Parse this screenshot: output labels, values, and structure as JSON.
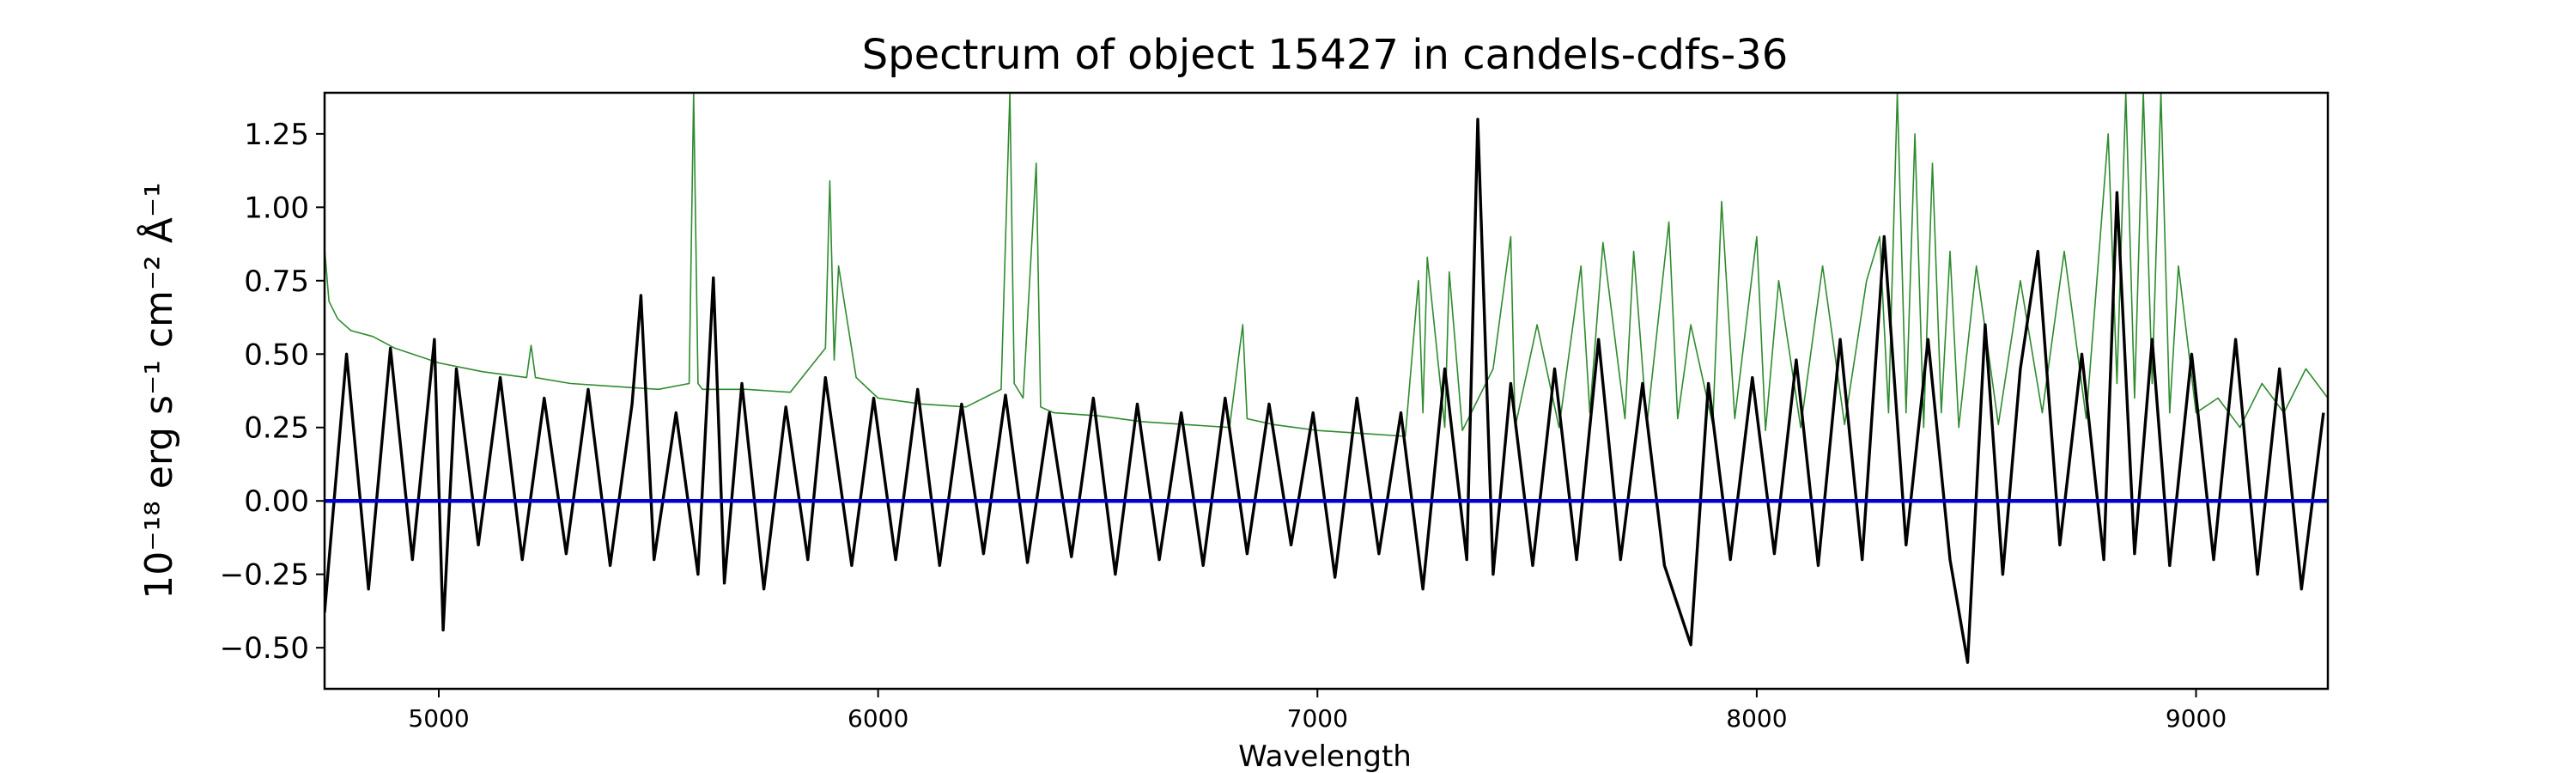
{
  "chart_data": {
    "type": "line",
    "title": "Spectrum of object 15427 in candels-cdfs-36",
    "xlabel": "Wavelength",
    "ylabel": "10⁻¹⁸ erg s⁻¹ cm⁻² Å⁻¹",
    "xlim": [
      4740,
      9300
    ],
    "ylim": [
      -0.64,
      1.39
    ],
    "xticks": [
      5000,
      6000,
      7000,
      8000,
      9000
    ],
    "yticks": [
      -0.5,
      -0.25,
      0.0,
      0.25,
      0.5,
      0.75,
      1.0,
      1.25
    ],
    "ytick_labels": [
      "−0.50",
      "−0.25",
      "0.00",
      "0.25",
      "0.50",
      "0.75",
      "1.00",
      "1.25"
    ],
    "grid": false,
    "colors": {
      "flux": "#000000",
      "error": "#2e8b2e",
      "zero": "#0000cc"
    },
    "series": [
      {
        "key": "flux",
        "x": [
          4740,
          4790,
          4840,
          4890,
          4940,
          4990,
          5010,
          5040,
          5090,
          5140,
          5190,
          5240,
          5290,
          5340,
          5390,
          5440,
          5460,
          5490,
          5540,
          5590,
          5625,
          5650,
          5690,
          5740,
          5790,
          5840,
          5880,
          5940,
          5990,
          6040,
          6090,
          6140,
          6190,
          6240,
          6290,
          6340,
          6390,
          6440,
          6490,
          6540,
          6590,
          6640,
          6690,
          6740,
          6790,
          6840,
          6890,
          6940,
          6990,
          7040,
          7090,
          7140,
          7190,
          7240,
          7290,
          7340,
          7365,
          7400,
          7440,
          7490,
          7540,
          7590,
          7640,
          7690,
          7740,
          7790,
          7850,
          7890,
          7940,
          7990,
          8040,
          8090,
          8140,
          8190,
          8240,
          8290,
          8340,
          8390,
          8440,
          8480,
          8520,
          8560,
          8600,
          8640,
          8690,
          8740,
          8790,
          8820,
          8860,
          8900,
          8940,
          8990,
          9040,
          9090,
          9140,
          9190,
          9240,
          9290
        ],
        "y": [
          -0.38,
          0.5,
          -0.3,
          0.52,
          -0.2,
          0.55,
          -0.44,
          0.45,
          -0.15,
          0.42,
          -0.2,
          0.35,
          -0.18,
          0.38,
          -0.22,
          0.33,
          0.7,
          -0.2,
          0.3,
          -0.25,
          0.76,
          -0.28,
          0.4,
          -0.3,
          0.32,
          -0.2,
          0.42,
          -0.22,
          0.35,
          -0.2,
          0.38,
          -0.22,
          0.33,
          -0.18,
          0.36,
          -0.21,
          0.3,
          -0.19,
          0.35,
          -0.25,
          0.33,
          -0.2,
          0.3,
          -0.22,
          0.35,
          -0.18,
          0.33,
          -0.15,
          0.3,
          -0.26,
          0.35,
          -0.18,
          0.3,
          -0.3,
          0.45,
          -0.2,
          1.3,
          -0.25,
          0.4,
          -0.22,
          0.45,
          -0.2,
          0.55,
          -0.2,
          0.4,
          -0.22,
          -0.49,
          0.4,
          -0.2,
          0.42,
          -0.18,
          0.48,
          -0.22,
          0.55,
          -0.2,
          0.9,
          -0.15,
          0.55,
          -0.2,
          -0.55,
          0.6,
          -0.25,
          0.45,
          0.85,
          -0.15,
          0.5,
          -0.2,
          1.05,
          -0.18,
          0.55,
          -0.22,
          0.5,
          -0.2,
          0.55,
          -0.25,
          0.45,
          -0.3,
          0.3
        ]
      },
      {
        "key": "error",
        "x": [
          4740,
          4750,
          4770,
          4800,
          4850,
          4900,
          5000,
          5100,
          5200,
          5210,
          5220,
          5300,
          5400,
          5500,
          5570,
          5580,
          5590,
          5600,
          5700,
          5800,
          5880,
          5890,
          5900,
          5910,
          5950,
          6000,
          6100,
          6200,
          6280,
          6300,
          6310,
          6330,
          6360,
          6370,
          6400,
          6500,
          6600,
          6700,
          6800,
          6830,
          6840,
          6900,
          7000,
          7100,
          7200,
          7230,
          7240,
          7250,
          7290,
          7300,
          7330,
          7400,
          7440,
          7450,
          7500,
          7550,
          7600,
          7620,
          7650,
          7700,
          7720,
          7750,
          7800,
          7820,
          7850,
          7900,
          7920,
          7950,
          8000,
          8020,
          8050,
          8100,
          8150,
          8200,
          8250,
          8280,
          8300,
          8320,
          8340,
          8360,
          8380,
          8400,
          8420,
          8440,
          8460,
          8500,
          8550,
          8600,
          8650,
          8700,
          8750,
          8800,
          8820,
          8840,
          8860,
          8880,
          8900,
          8920,
          8940,
          8960,
          9000,
          9050,
          9100,
          9150,
          9200,
          9250,
          9300
        ],
        "y": [
          0.86,
          0.68,
          0.62,
          0.58,
          0.56,
          0.52,
          0.47,
          0.44,
          0.42,
          0.53,
          0.42,
          0.4,
          0.39,
          0.38,
          0.4,
          1.39,
          0.4,
          0.38,
          0.38,
          0.37,
          0.52,
          1.09,
          0.48,
          0.8,
          0.42,
          0.35,
          0.33,
          0.32,
          0.38,
          1.39,
          0.4,
          0.35,
          1.15,
          0.32,
          0.3,
          0.29,
          0.27,
          0.26,
          0.25,
          0.6,
          0.28,
          0.26,
          0.24,
          0.23,
          0.22,
          0.75,
          0.3,
          0.83,
          0.25,
          0.78,
          0.24,
          0.45,
          0.9,
          0.25,
          0.6,
          0.25,
          0.8,
          0.3,
          0.88,
          0.28,
          0.85,
          0.26,
          0.95,
          0.28,
          0.6,
          0.26,
          1.02,
          0.28,
          0.9,
          0.24,
          0.75,
          0.25,
          0.8,
          0.26,
          0.75,
          0.9,
          0.3,
          1.39,
          0.3,
          1.25,
          0.25,
          1.15,
          0.3,
          0.85,
          0.25,
          0.8,
          0.26,
          0.75,
          0.3,
          0.85,
          0.28,
          1.25,
          0.4,
          1.39,
          0.35,
          1.39,
          0.4,
          1.39,
          0.3,
          0.8,
          0.3,
          0.35,
          0.25,
          0.4,
          0.3,
          0.45,
          0.35
        ]
      },
      {
        "key": "zero",
        "x": [
          4740,
          9300
        ],
        "y": [
          0.0,
          0.0
        ]
      }
    ]
  }
}
